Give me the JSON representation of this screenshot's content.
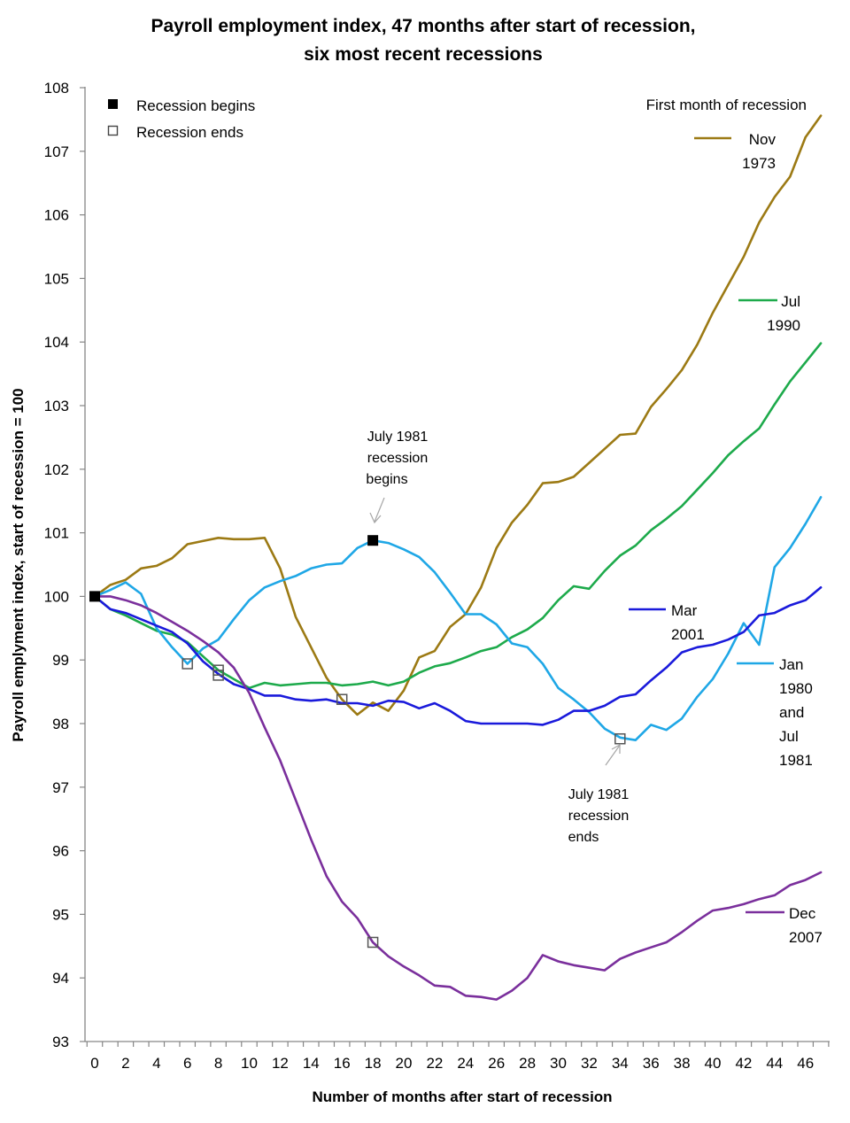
{
  "chart_data": {
    "type": "line",
    "title_line1": "Payroll employment index, 47 months after start of recession,",
    "title_line2": "six most recent recessions",
    "xlabel": "Number of months after start of recession",
    "ylabel": "Payroll emplyment index, start of recession = 100",
    "xlim": [
      0,
      47
    ],
    "ylim": [
      93,
      108
    ],
    "x_ticks": [
      "0",
      "2",
      "4",
      "6",
      "8",
      "10",
      "12",
      "14",
      "16",
      "18",
      "20",
      "22",
      "24",
      "26",
      "28",
      "30",
      "32",
      "34",
      "36",
      "38",
      "40",
      "42",
      "44",
      "46"
    ],
    "y_ticks": [
      "93",
      "94",
      "95",
      "96",
      "97",
      "98",
      "99",
      "100",
      "101",
      "102",
      "103",
      "104",
      "105",
      "106",
      "107",
      "108"
    ],
    "grid": false,
    "legend": {
      "title": "First month of recession",
      "begins_label": "Recession begins",
      "ends_label": "Recession ends"
    },
    "series": [
      {
        "key": "nov1973",
        "label_lines": [
          "Nov",
          "1973"
        ],
        "color": "#9C7A14",
        "values": [
          100,
          100.18,
          100.26,
          100.44,
          100.48,
          100.6,
          100.82,
          100.87,
          100.92,
          100.9,
          100.9,
          100.92,
          100.44,
          99.68,
          99.2,
          98.72,
          98.38,
          98.14,
          98.33,
          98.2,
          98.52,
          99.04,
          99.14,
          99.52,
          99.72,
          100.14,
          100.76,
          101.16,
          101.44,
          101.78,
          101.8,
          101.88,
          102.1,
          102.32,
          102.54,
          102.56,
          102.98,
          103.26,
          103.56,
          103.96,
          104.46,
          104.9,
          105.34,
          105.88,
          106.28,
          106.6,
          107.22,
          107.56
        ]
      },
      {
        "key": "jul1990",
        "label_lines": [
          "Jul",
          "1990"
        ],
        "color": "#1DAA4B",
        "values": [
          100,
          99.8,
          99.7,
          99.58,
          99.46,
          99.4,
          99.28,
          99.06,
          98.84,
          98.7,
          98.56,
          98.64,
          98.6,
          98.62,
          98.64,
          98.64,
          98.6,
          98.62,
          98.66,
          98.6,
          98.66,
          98.8,
          98.9,
          98.95,
          99.04,
          99.14,
          99.2,
          99.36,
          99.48,
          99.66,
          99.94,
          100.16,
          100.12,
          100.4,
          100.64,
          100.8,
          101.04,
          101.22,
          101.42,
          101.68,
          101.94,
          102.22,
          102.44,
          102.64,
          103.02,
          103.38,
          103.68,
          103.98
        ]
      },
      {
        "key": "jan1980_jul1981",
        "label_lines": [
          "Jan",
          "1980",
          "and",
          "Jul",
          "1981"
        ],
        "color": "#1FA7E6",
        "values": [
          100,
          100.1,
          100.22,
          100.04,
          99.5,
          99.2,
          98.94,
          99.18,
          99.32,
          99.64,
          99.94,
          100.14,
          100.24,
          100.32,
          100.44,
          100.5,
          100.52,
          100.76,
          100.88,
          100.84,
          100.74,
          100.62,
          100.38,
          100.06,
          99.72,
          99.72,
          99.56,
          99.26,
          99.2,
          98.94,
          98.56,
          98.38,
          98.18,
          97.92,
          97.78,
          97.74,
          97.98,
          97.9,
          98.08,
          98.42,
          98.7,
          99.1,
          99.58,
          99.24,
          100.46,
          100.76,
          101.14,
          101.56
        ]
      },
      {
        "key": "mar2001",
        "label_lines": [
          "Mar",
          "2001"
        ],
        "color": "#1A1ADB",
        "values": [
          100,
          99.8,
          99.74,
          99.64,
          99.54,
          99.44,
          99.26,
          98.98,
          98.78,
          98.62,
          98.54,
          98.44,
          98.44,
          98.38,
          98.36,
          98.38,
          98.32,
          98.32,
          98.28,
          98.36,
          98.34,
          98.24,
          98.32,
          98.2,
          98.04,
          98.0,
          98.0,
          98.0,
          98.0,
          97.98,
          98.06,
          98.2,
          98.2,
          98.28,
          98.42,
          98.46,
          98.68,
          98.88,
          99.12,
          99.2,
          99.24,
          99.32,
          99.44,
          99.7,
          99.74,
          99.86,
          99.94,
          100.14
        ]
      },
      {
        "key": "dec2007",
        "label_lines": [
          "Dec",
          "2007"
        ],
        "color": "#7A2F9C",
        "values": [
          100,
          100.0,
          99.94,
          99.86,
          99.74,
          99.6,
          99.46,
          99.3,
          99.12,
          98.88,
          98.48,
          97.94,
          97.42,
          96.8,
          96.18,
          95.6,
          95.2,
          94.94,
          94.56,
          94.34,
          94.18,
          94.04,
          93.88,
          93.86,
          93.72,
          93.7,
          93.66,
          93.8,
          94.0,
          94.36,
          94.26,
          94.2,
          94.16,
          94.12,
          94.3,
          94.4,
          94.48,
          94.56,
          94.72,
          94.9,
          95.06,
          95.1,
          95.16,
          95.24,
          95.3,
          95.46,
          95.54,
          95.66
        ]
      }
    ],
    "markers": {
      "begins": [
        {
          "x": 0,
          "y": 100
        },
        {
          "x": 18,
          "y": 100.88
        }
      ],
      "ends": [
        {
          "x": 6,
          "y": 98.94
        },
        {
          "x": 8,
          "y": 98.84
        },
        {
          "x": 8,
          "y": 98.76
        },
        {
          "x": 16,
          "y": 98.38
        },
        {
          "x": 18,
          "y": 94.56
        },
        {
          "x": 34,
          "y": 97.76
        }
      ]
    },
    "annotations": [
      {
        "key": "begins",
        "lines": [
          "July 1981",
          "recession",
          "begins"
        ]
      },
      {
        "key": "ends",
        "lines": [
          "July 1981",
          "recession",
          "ends"
        ]
      }
    ]
  }
}
